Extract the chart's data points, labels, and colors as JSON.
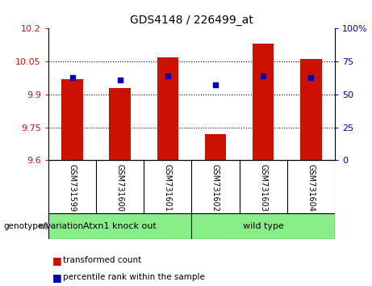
{
  "title": "GDS4148 / 226499_at",
  "samples": [
    "GSM731599",
    "GSM731600",
    "GSM731601",
    "GSM731602",
    "GSM731603",
    "GSM731604"
  ],
  "red_values": [
    9.97,
    9.93,
    10.07,
    9.72,
    10.13,
    10.06
  ],
  "blue_values": [
    9.975,
    9.965,
    9.985,
    9.945,
    9.985,
    9.975
  ],
  "y_min": 9.6,
  "y_max": 10.2,
  "y_ticks": [
    9.6,
    9.75,
    9.9,
    10.05,
    10.2
  ],
  "y_tick_labels": [
    "9.6",
    "9.75",
    "9.9",
    "10.05",
    "10.2"
  ],
  "right_y_ticks_pct": [
    0,
    25,
    50,
    75,
    100
  ],
  "right_y_labels": [
    "0",
    "25",
    "50",
    "75",
    "100%"
  ],
  "bar_color": "#CC1100",
  "blue_color": "#0000BB",
  "bg_color": "#C8C8C8",
  "green_color": "#88EE88",
  "tick_color_left": "#CC1100",
  "tick_color_right": "#0000BB",
  "genotype_label": "genotype/variation",
  "legend_red": "transformed count",
  "legend_blue": "percentile rank within the sample",
  "group1_label": "Atxn1 knock out",
  "group2_label": "wild type",
  "group1_range": [
    0,
    2
  ],
  "group2_range": [
    3,
    5
  ],
  "bar_width": 0.45,
  "base_value": 9.6
}
